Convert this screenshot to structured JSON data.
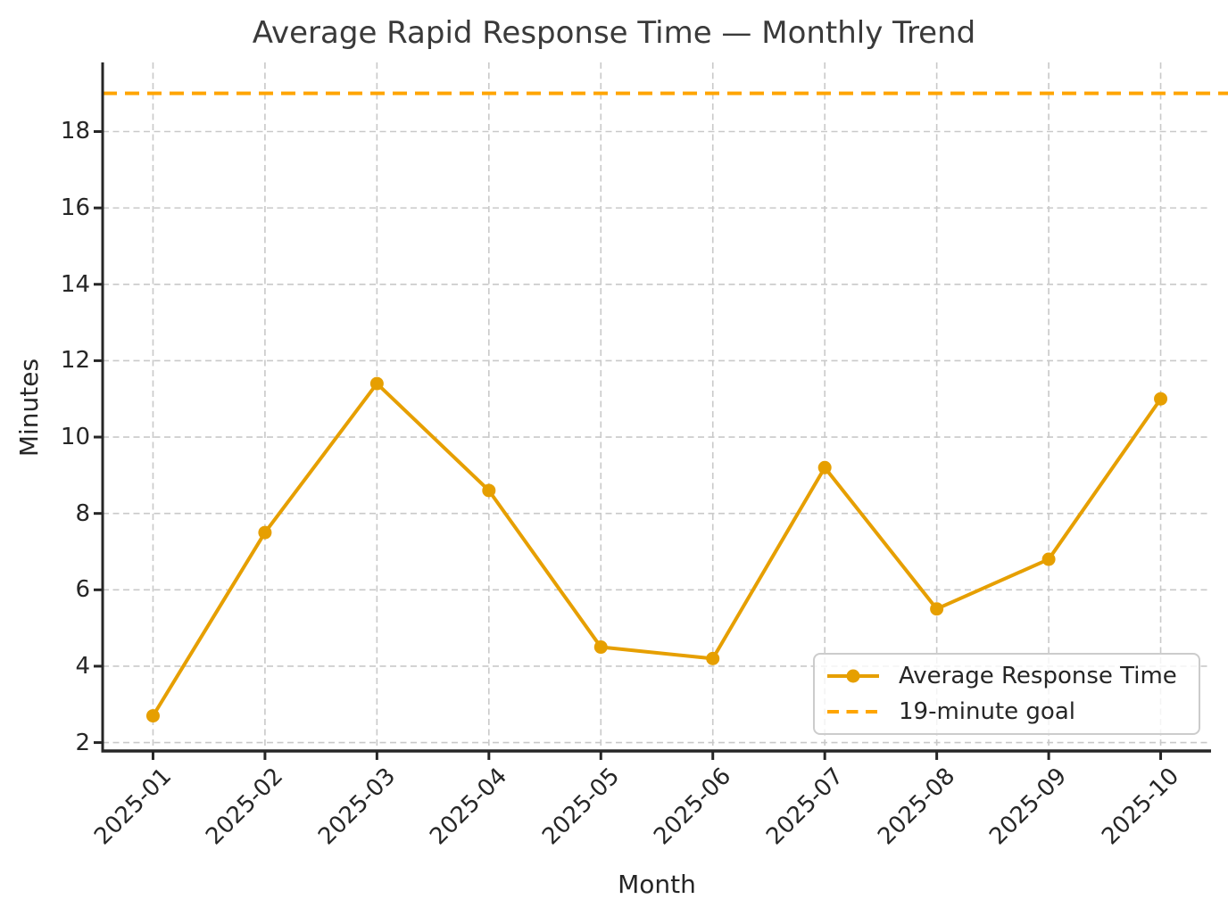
{
  "chart_data": {
    "type": "line",
    "title": "Average Rapid Response Time — Monthly Trend",
    "xlabel": "Month",
    "ylabel": "Minutes",
    "categories": [
      "2025-01",
      "2025-02",
      "2025-03",
      "2025-04",
      "2025-05",
      "2025-06",
      "2025-07",
      "2025-08",
      "2025-09",
      "2025-10"
    ],
    "series": [
      {
        "name": "Average Response Time",
        "kind": "line-with-markers",
        "color": "#E69F00",
        "values": [
          2.7,
          7.5,
          11.4,
          8.6,
          4.5,
          4.2,
          9.2,
          5.5,
          6.8,
          11.0
        ]
      },
      {
        "name": "19-minute goal",
        "kind": "horizontal-dashed-line",
        "color": "#FFA500",
        "value": 19
      }
    ],
    "yticks": [
      2,
      4,
      6,
      8,
      10,
      12,
      14,
      16,
      18
    ],
    "ylim": [
      1.78,
      19.81
    ],
    "xlim": [
      -0.45,
      9.45
    ],
    "grid": true,
    "grid_style": "dashed",
    "legend_position": "lower right",
    "colors": {
      "grid": "#c9c9c9",
      "spine": "#262626",
      "tick_text": "#262626",
      "title_text": "#3a3a3a"
    }
  }
}
